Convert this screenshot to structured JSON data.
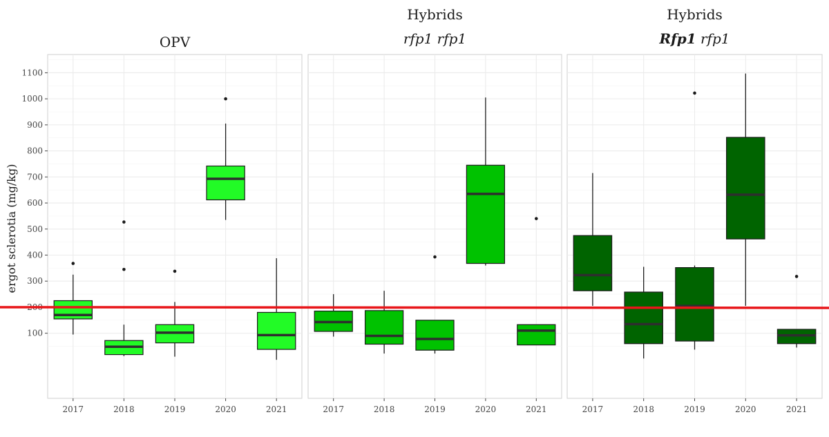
{
  "chart_data": {
    "type": "boxplot",
    "ylabel": "ergot sclerotia (mg/kg)",
    "xlabel": "",
    "ylim": [
      -150,
      1170
    ],
    "yticks": [
      100,
      200,
      300,
      400,
      500,
      600,
      700,
      800,
      900,
      1000,
      1100
    ],
    "categories": [
      "2017",
      "2018",
      "2019",
      "2020",
      "2021"
    ],
    "threshold": 200,
    "threshold_color": "#e8161a",
    "grid": true,
    "panels": [
      {
        "strip_lines": [
          {
            "text": "OPV",
            "style": "normal"
          }
        ],
        "fill": "#22fb26",
        "boxes": [
          {
            "category": "2017",
            "low": 95,
            "q1": 155,
            "median": 170,
            "q3": 225,
            "high": 325,
            "outliers": [
              368
            ]
          },
          {
            "category": "2018",
            "low": 12,
            "q1": 18,
            "median": 48,
            "q3": 72,
            "high": 133,
            "outliers": [
              345,
              527
            ]
          },
          {
            "category": "2019",
            "low": 10,
            "q1": 63,
            "median": 102,
            "q3": 133,
            "high": 220,
            "outliers": [
              338
            ]
          },
          {
            "category": "2020",
            "low": 535,
            "q1": 612,
            "median": 693,
            "q3": 742,
            "high": 905,
            "outliers": [
              1000
            ]
          },
          {
            "category": "2021",
            "low": -2,
            "q1": 38,
            "median": 93,
            "q3": 180,
            "high": 388,
            "outliers": []
          }
        ]
      },
      {
        "strip_lines": [
          {
            "text": "Hybrids",
            "style": "normal"
          },
          {
            "text": "rfp1 rfp1",
            "style": "italic"
          }
        ],
        "fill": "#00c200",
        "boxes": [
          {
            "category": "2017",
            "low": 87,
            "q1": 107,
            "median": 143,
            "q3": 185,
            "high": 250,
            "outliers": []
          },
          {
            "category": "2018",
            "low": 22,
            "q1": 58,
            "median": 90,
            "q3": 187,
            "high": 263,
            "outliers": []
          },
          {
            "category": "2019",
            "low": 22,
            "q1": 35,
            "median": 78,
            "q3": 150,
            "high": 150,
            "outliers": [
              393
            ]
          },
          {
            "category": "2020",
            "low": 360,
            "q1": 368,
            "median": 635,
            "q3": 745,
            "high": 1005,
            "outliers": []
          },
          {
            "category": "2021",
            "low": 55,
            "q1": 55,
            "median": 110,
            "q3": 133,
            "high": 133,
            "outliers": [
              540
            ]
          }
        ]
      },
      {
        "strip_lines": [
          {
            "text": "Hybrids",
            "style": "normal"
          },
          {
            "parts": [
              {
                "text": "Rfp1",
                "style": "bold-italic"
              },
              {
                "text": " rfp1",
                "style": "italic"
              }
            ]
          }
        ],
        "fill": "#006400",
        "boxes": [
          {
            "category": "2017",
            "low": 205,
            "q1": 263,
            "median": 323,
            "q3": 475,
            "high": 715,
            "outliers": []
          },
          {
            "category": "2018",
            "low": 3,
            "q1": 60,
            "median": 135,
            "q3": 258,
            "high": 355,
            "outliers": []
          },
          {
            "category": "2019",
            "low": 37,
            "q1": 70,
            "median": 205,
            "q3": 352,
            "high": 360,
            "outliers": [
              1022
            ]
          },
          {
            "category": "2020",
            "low": 205,
            "q1": 462,
            "median": 632,
            "q3": 852,
            "high": 1097,
            "outliers": []
          },
          {
            "category": "2021",
            "low": 45,
            "q1": 60,
            "median": 92,
            "q3": 115,
            "high": 115,
            "outliers": [
              318
            ]
          }
        ]
      }
    ]
  }
}
